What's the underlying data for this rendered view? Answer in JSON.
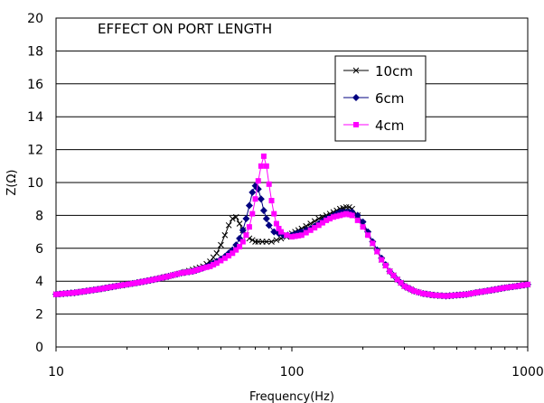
{
  "chart_data": {
    "type": "line",
    "title": "EFFECT ON PORT LENGTH",
    "xlabel": "Frequency(Hz)",
    "ylabel": "Z(Ω)",
    "xscale": "log",
    "xlim": [
      10,
      1000
    ],
    "ylim": [
      0,
      20
    ],
    "x_ticks": [
      10,
      100,
      1000
    ],
    "y_ticks": [
      0,
      2,
      4,
      6,
      8,
      10,
      12,
      14,
      16,
      18,
      20
    ],
    "grid": "horizontal",
    "legend_position": "upper-right",
    "series": [
      {
        "name": "10cm",
        "color": "#000000",
        "marker": "x",
        "x": [
          10,
          12,
          15,
          18,
          22,
          26,
          30,
          34,
          38,
          42,
          45,
          48,
          50,
          52,
          54,
          56,
          58,
          60,
          62,
          64,
          66,
          68,
          70,
          72,
          75,
          78,
          82,
          86,
          90,
          95,
          100,
          110,
          120,
          130,
          140,
          150,
          160,
          170,
          175,
          180,
          190,
          200,
          210,
          220,
          240,
          260,
          280,
          300,
          330,
          360,
          400,
          450,
          500,
          550,
          600,
          700,
          800,
          900,
          1000
        ],
        "y": [
          3.2,
          3.3,
          3.5,
          3.7,
          3.9,
          4.1,
          4.3,
          4.5,
          4.7,
          4.9,
          5.2,
          5.7,
          6.2,
          6.8,
          7.4,
          7.8,
          7.9,
          7.5,
          7.1,
          6.8,
          6.6,
          6.5,
          6.4,
          6.4,
          6.4,
          6.4,
          6.4,
          6.5,
          6.6,
          6.7,
          6.9,
          7.2,
          7.5,
          7.8,
          8.0,
          8.2,
          8.4,
          8.5,
          8.5,
          8.4,
          8.0,
          7.5,
          6.9,
          6.3,
          5.3,
          4.6,
          4.1,
          3.7,
          3.4,
          3.25,
          3.15,
          3.1,
          3.15,
          3.2,
          3.3,
          3.45,
          3.6,
          3.7,
          3.8
        ]
      },
      {
        "name": "6cm",
        "color": "#000080",
        "marker": "diamond",
        "x": [
          10,
          12,
          15,
          18,
          22,
          26,
          30,
          34,
          38,
          42,
          45,
          48,
          52,
          56,
          58,
          60,
          62,
          64,
          66,
          68,
          70,
          72,
          74,
          76,
          78,
          80,
          84,
          88,
          92,
          96,
          100,
          110,
          120,
          130,
          140,
          150,
          160,
          170,
          180,
          190,
          200,
          210,
          220,
          240,
          260,
          280,
          300,
          330,
          360,
          400,
          450,
          500,
          550,
          600,
          700,
          800,
          900,
          1000
        ],
        "y": [
          3.2,
          3.3,
          3.5,
          3.7,
          3.9,
          4.1,
          4.3,
          4.5,
          4.6,
          4.8,
          5.0,
          5.2,
          5.5,
          5.9,
          6.2,
          6.6,
          7.1,
          7.8,
          8.6,
          9.4,
          9.8,
          9.6,
          9.0,
          8.3,
          7.8,
          7.4,
          7.0,
          6.9,
          6.8,
          6.8,
          6.8,
          7.0,
          7.2,
          7.5,
          7.8,
          8.0,
          8.2,
          8.2,
          8.2,
          8.0,
          7.6,
          7.0,
          6.4,
          5.4,
          4.6,
          4.1,
          3.7,
          3.4,
          3.25,
          3.15,
          3.1,
          3.15,
          3.2,
          3.3,
          3.45,
          3.6,
          3.7,
          3.8
        ]
      },
      {
        "name": "4cm",
        "color": "#ff00ff",
        "marker": "square",
        "x": [
          10,
          12,
          15,
          18,
          22,
          26,
          30,
          34,
          38,
          42,
          45,
          48,
          52,
          56,
          60,
          62,
          64,
          66,
          68,
          70,
          72,
          74,
          76,
          78,
          80,
          82,
          84,
          86,
          88,
          90,
          95,
          100,
          110,
          120,
          130,
          140,
          150,
          160,
          170,
          180,
          190,
          200,
          210,
          220,
          240,
          260,
          280,
          300,
          330,
          360,
          400,
          450,
          500,
          550,
          600,
          700,
          800,
          900,
          1000
        ],
        "y": [
          3.2,
          3.3,
          3.5,
          3.7,
          3.9,
          4.1,
          4.3,
          4.5,
          4.6,
          4.8,
          4.9,
          5.1,
          5.4,
          5.7,
          6.1,
          6.4,
          6.8,
          7.3,
          8.1,
          9.0,
          10.1,
          11.0,
          11.6,
          11.0,
          9.9,
          8.9,
          8.1,
          7.5,
          7.2,
          7.0,
          6.8,
          6.7,
          6.8,
          7.1,
          7.4,
          7.7,
          7.9,
          8.0,
          8.1,
          8.0,
          7.7,
          7.3,
          6.8,
          6.3,
          5.3,
          4.6,
          4.1,
          3.7,
          3.4,
          3.25,
          3.15,
          3.1,
          3.15,
          3.2,
          3.3,
          3.45,
          3.6,
          3.7,
          3.8
        ]
      }
    ]
  }
}
